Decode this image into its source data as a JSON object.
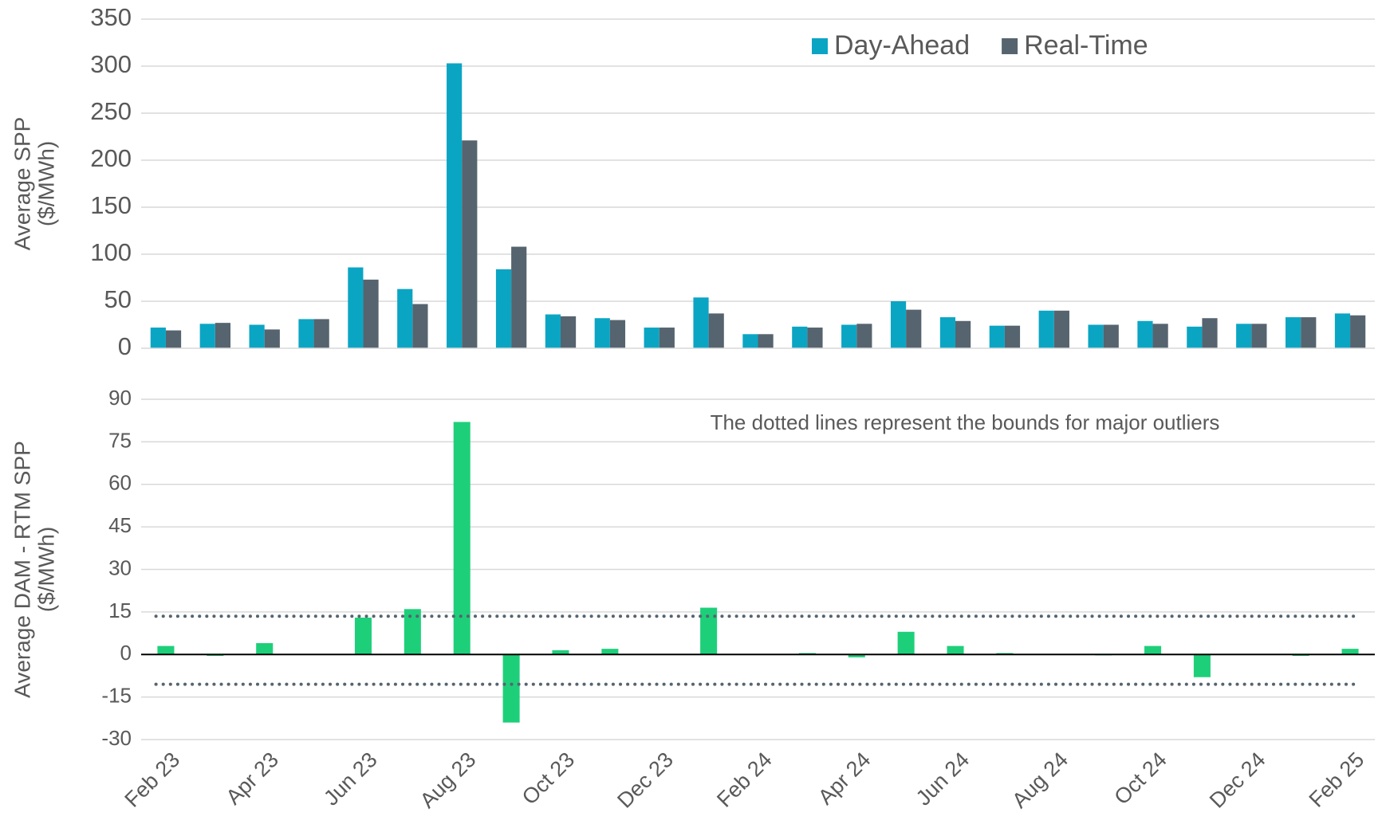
{
  "chart_data": [
    {
      "type": "bar",
      "ylabel": [
        "Average SPP",
        "($/MWh)"
      ],
      "categories": [
        "Feb 23",
        null,
        "Apr 23",
        null,
        "Jun 23",
        null,
        "Aug 23",
        null,
        "Oct 23",
        null,
        "Dec 23",
        null,
        "Feb 24",
        null,
        "Apr 24",
        null,
        "Jun 24",
        null,
        "Aug 24",
        null,
        "Oct 24",
        null,
        "Dec 24",
        null,
        "Feb 25"
      ],
      "series": [
        {
          "name": "Day-Ahead",
          "color": "#0ba5c4",
          "values": [
            22,
            26,
            25,
            31,
            86,
            63,
            303,
            84,
            36,
            32,
            22,
            54,
            15,
            23,
            25,
            50,
            33,
            24,
            40,
            25,
            29,
            23,
            26,
            33,
            37
          ]
        },
        {
          "name": "Real-Time",
          "color": "#56646f",
          "values": [
            19,
            27,
            20,
            31,
            73,
            47,
            221,
            108,
            34,
            30,
            22,
            37,
            15,
            22,
            26,
            41,
            29,
            24,
            40,
            25,
            26,
            32,
            26,
            33,
            35
          ]
        }
      ],
      "ylim": [
        0,
        350
      ],
      "yticks": [
        0,
        50,
        100,
        150,
        200,
        250,
        300,
        350
      ],
      "grid": true,
      "legend": "top-right"
    },
    {
      "type": "bar",
      "ylabel": [
        "Average DAM - RTM SPP",
        "($/MWh)"
      ],
      "annotation": "The dotted lines represent the bounds for major outliers",
      "categories": [
        "Feb 23",
        null,
        "Apr 23",
        null,
        "Jun 23",
        null,
        "Aug 23",
        null,
        "Oct 23",
        null,
        "Dec 23",
        null,
        "Feb 24",
        null,
        "Apr 24",
        null,
        "Jun 24",
        null,
        "Aug 24",
        null,
        "Oct 24",
        null,
        "Dec 24",
        null,
        "Feb 25"
      ],
      "values": [
        3,
        -0.5,
        4,
        0,
        13,
        16,
        82,
        -24,
        1.5,
        2,
        0,
        16.5,
        0,
        0.5,
        -1,
        8,
        3,
        0.5,
        0,
        -0.3,
        3,
        -8,
        0,
        -0.5,
        2
      ],
      "color": "#1ecf7a",
      "outlier_bounds": [
        13.5,
        -10.5
      ],
      "ylim": [
        -30,
        90
      ],
      "yticks": [
        -30,
        -15,
        0,
        15,
        30,
        45,
        60,
        75,
        90
      ],
      "grid": true
    }
  ]
}
